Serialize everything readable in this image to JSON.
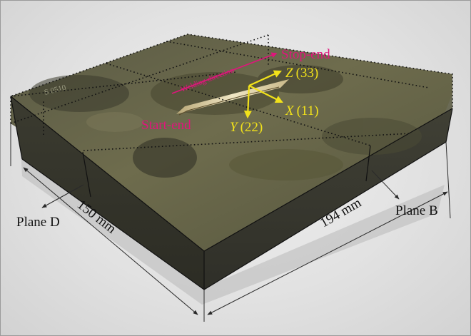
{
  "labels": {
    "welding_direction": "Welding direction",
    "stop_end": "Stop-end",
    "start_end": "Start-end",
    "axis_z": {
      "letter": "Z",
      "value": "(33)"
    },
    "axis_x": {
      "letter": "X",
      "value": "(11)"
    },
    "axis_y": {
      "letter": "Y",
      "value": "(22)"
    },
    "plane_d": "Plane D",
    "plane_b": "Plane B",
    "dim_width": "150 mm",
    "dim_length": "194 mm",
    "engraving": "S 0510"
  },
  "colors": {
    "magenta": "#e0157c",
    "yellow": "#f2e21a",
    "dim_line": "#2a2a2a",
    "grid_dots": "#111111"
  }
}
